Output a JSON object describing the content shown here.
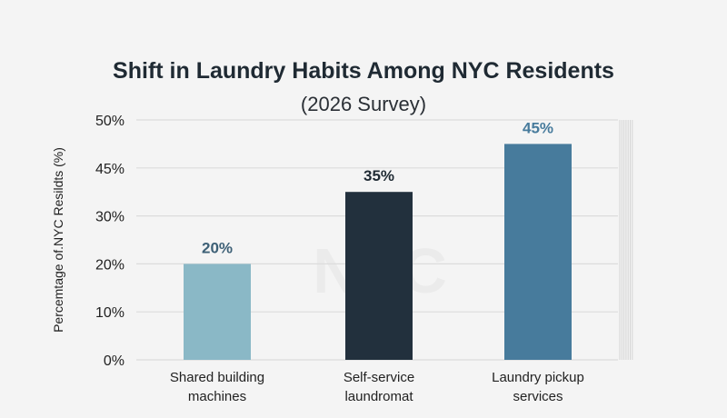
{
  "chart_data": {
    "type": "bar",
    "title": "Shift in Laundry Habits Among NYC Residents",
    "subtitle": "(2026 Survey)",
    "ylabel": "Percemtage of.NYC Resildts (%)",
    "xlabel": "",
    "yticks": [
      "0%",
      "10%",
      "20%",
      "30%",
      "45%",
      "50%"
    ],
    "ylim": [
      0,
      50
    ],
    "grid": true,
    "categories": [
      [
        "Shared building",
        "machines"
      ],
      [
        "Self-service",
        "laundromat"
      ],
      [
        "Laundry pickup",
        "services"
      ]
    ],
    "values": [
      20,
      35,
      45
    ],
    "data_labels": [
      "20%",
      "35%",
      "45%"
    ],
    "colors": [
      "#8ab8c6",
      "#22303d",
      "#477b9c"
    ],
    "label_colors": [
      "#3d6076",
      "#1f2a33",
      "#477b9c"
    ],
    "watermark": "NYC"
  }
}
